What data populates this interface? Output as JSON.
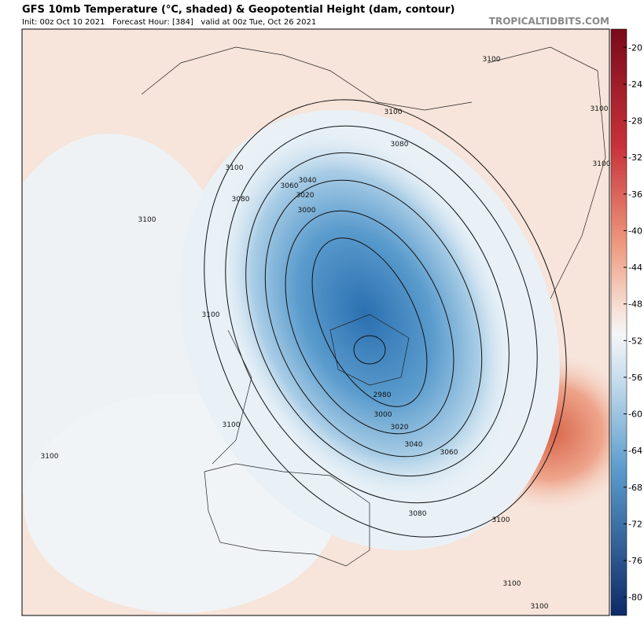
{
  "header": {
    "title": "GFS 10mb Temperature (°C, shaded) & Geopotential Height (dam, contour)",
    "subtitle": "Init: 00z Oct 10 2021   Forecast Hour: [384]   valid at 00z Tue, Oct 26 2021",
    "source": "TROPICALTIDBITS.COM"
  },
  "colorbar": {
    "range": [
      -18,
      -82
    ],
    "ticks": [
      -20,
      -24,
      -28,
      -32,
      -36,
      -40,
      -44,
      -48,
      -52,
      -56,
      -60,
      -64,
      -68,
      -72,
      -76,
      -80
    ]
  },
  "contour_labels": [
    3100,
    3100,
    3080,
    3100,
    3060,
    3040,
    3020,
    3000,
    3080,
    3100,
    3100,
    3100,
    3100,
    2980,
    3000,
    3020,
    3040,
    3060,
    3080,
    3100,
    3100,
    3100,
    3100,
    3100
  ]
}
